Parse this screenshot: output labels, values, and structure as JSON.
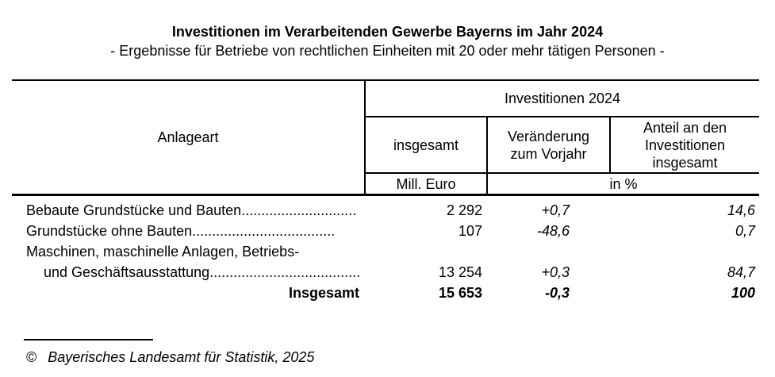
{
  "title": "Investitionen im Verarbeitenden Gewerbe Bayerns im Jahr 2024",
  "subtitle": "- Ergebnisse für Betriebe von rechtlichen Einheiten mit 20 oder mehr tätigen Personen -",
  "table": {
    "columns": {
      "anlageart": "Anlageart",
      "group": "Investitionen 2024",
      "insgesamt": "insgesamt",
      "veraenderung": "Veränderung zum Vorjahr",
      "anteil": "Anteil an den Investitionen insgesamt"
    },
    "units": {
      "insgesamt": "Mill. Euro",
      "percent": "in %"
    },
    "rows": [
      {
        "label": "Bebaute Grundstücke und Bauten",
        "leader": ".............................",
        "insgesamt": "2 292",
        "veraenderung_vorjahr": "+0,7",
        "anteil": "14,6"
      },
      {
        "label": "Grundstücke ohne Bauten",
        "leader": "....................................",
        "insgesamt": "107",
        "veraenderung_vorjahr": "-48,6",
        "anteil": "0,7"
      },
      {
        "label_line1": "Maschinen, maschinelle Anlagen, Betriebs-",
        "label_line2": "und Geschäftsausstattung",
        "leader": "......................................",
        "insgesamt": "13 254",
        "veraenderung_vorjahr": "+0,3",
        "anteil": "84,7"
      },
      {
        "label": "Insgesamt",
        "insgesamt": "15 653",
        "veraenderung_vorjahr": "-0,3",
        "anteil": "100"
      }
    ]
  },
  "footer": {
    "symbol": "©",
    "text": "Bayerisches Landesamt für Statistik, 2025"
  }
}
